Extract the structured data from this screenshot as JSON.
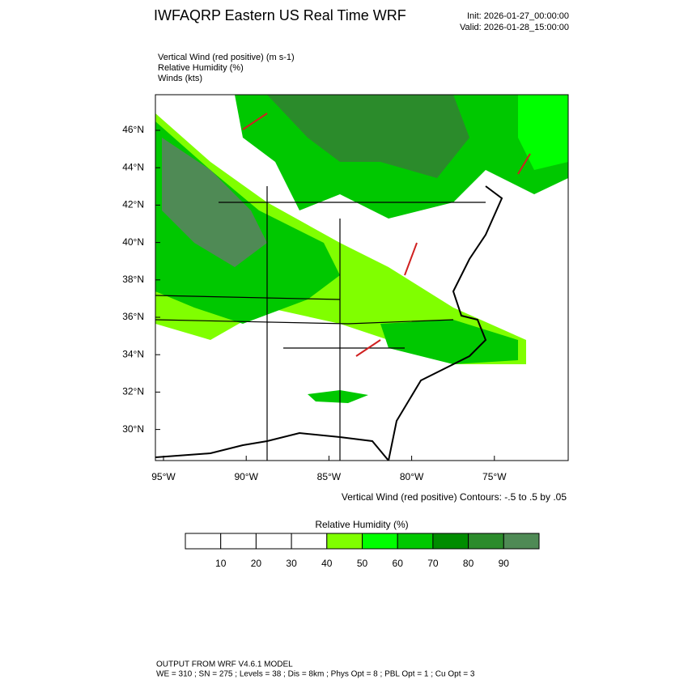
{
  "header": {
    "title": "IWFAQRP Eastern US Real Time WRF",
    "init": "Init: 2026-01-27_00:00:00",
    "valid": "Valid: 2026-01-28_15:00:00"
  },
  "fields": [
    "Vertical Wind (red positive)   (m s-1)",
    "Relative Humidity   (%)",
    "Winds   (kts)"
  ],
  "map": {
    "lat_labels": [
      "46°N",
      "44°N",
      "42°N",
      "40°N",
      "38°N",
      "36°N",
      "34°N",
      "32°N",
      "30°N"
    ],
    "lon_labels": [
      "95°W",
      "90°W",
      "85°W",
      "80°W",
      "75°W"
    ],
    "contour_note": "Vertical Wind (red positive) Contours: -.5 to .5 by .05"
  },
  "colorbar": {
    "title": "Relative Humidity  (%)",
    "ticks": [
      10,
      20,
      30,
      40,
      50,
      60,
      70,
      80,
      90
    ],
    "colors": [
      "#ffffff",
      "#ffffff",
      "#ffffff",
      "#ffffff",
      "#80ff00",
      "#00ff00",
      "#00c800",
      "#008c00",
      "#2b8b2b",
      "#4f8a55"
    ]
  },
  "footer": {
    "line1": "OUTPUT FROM WRF V4.6.1 MODEL",
    "line2": "WE = 310 ; SN = 275 ; Levels = 38 ; Dis = 8km ; Phys Opt = 8 ; PBL Opt = 1 ; Cu Opt = 3"
  }
}
